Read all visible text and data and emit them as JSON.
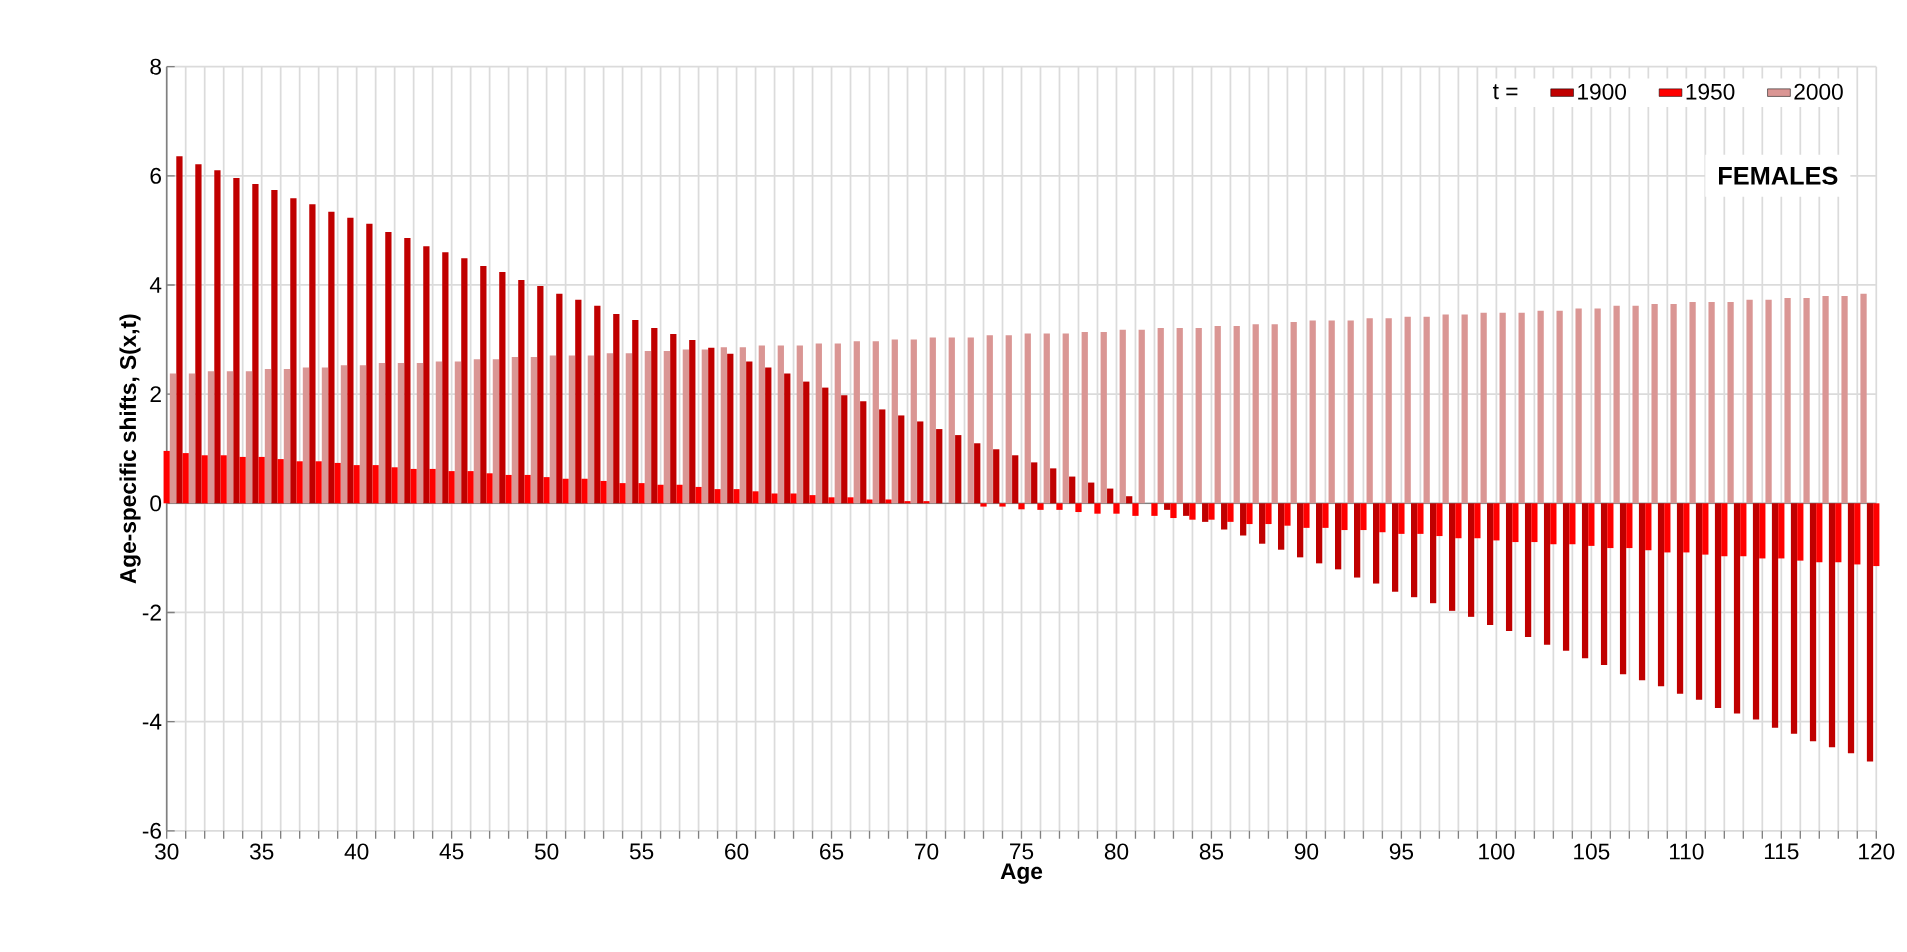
{
  "chart_data": {
    "type": "bar",
    "xlabel": "Age",
    "ylabel": "Age-specific shifts, S(x,t)",
    "legend_title": "t =",
    "annotations": [
      "FEMALES"
    ],
    "x": [
      30,
      31,
      32,
      33,
      34,
      35,
      36,
      37,
      38,
      39,
      40,
      41,
      42,
      43,
      44,
      45,
      46,
      47,
      48,
      49,
      50,
      51,
      52,
      53,
      54,
      55,
      56,
      57,
      58,
      59,
      60,
      61,
      62,
      63,
      64,
      65,
      66,
      67,
      68,
      69,
      70,
      71,
      72,
      73,
      74,
      75,
      76,
      77,
      78,
      79,
      80,
      81,
      82,
      83,
      84,
      85,
      86,
      87,
      88,
      89,
      90,
      91,
      92,
      93,
      94,
      95,
      96,
      97,
      98,
      99,
      100,
      101,
      102,
      103,
      104,
      105,
      106,
      107,
      108,
      109,
      110,
      111,
      112,
      113,
      114,
      115,
      116,
      117,
      118,
      119,
      120
    ],
    "series": [
      {
        "name": "1900",
        "color": "#c00000",
        "values": [
          null,
          6.36,
          6.21,
          6.1,
          5.96,
          5.85,
          5.74,
          5.59,
          5.48,
          5.34,
          5.23,
          5.12,
          4.97,
          4.86,
          4.71,
          4.6,
          4.49,
          4.35,
          4.24,
          4.09,
          3.98,
          3.84,
          3.73,
          3.62,
          3.47,
          3.36,
          3.21,
          3.1,
          2.99,
          2.85,
          2.74,
          2.6,
          2.49,
          2.38,
          2.23,
          2.12,
          1.98,
          1.87,
          1.72,
          1.61,
          1.5,
          1.36,
          1.25,
          1.1,
          0.99,
          0.88,
          0.75,
          0.64,
          0.49,
          0.38,
          0.27,
          0.13,
          0.0,
          -0.12,
          -0.23,
          -0.34,
          -0.48,
          -0.59,
          -0.74,
          -0.85,
          -0.99,
          -1.1,
          -1.21,
          -1.36,
          -1.47,
          -1.62,
          -1.72,
          -1.83,
          -1.97,
          -2.08,
          -2.23,
          -2.34,
          -2.45,
          -2.59,
          -2.7,
          -2.84,
          -2.96,
          -3.13,
          -3.24,
          -3.35,
          -3.49,
          -3.6,
          -3.75,
          -3.85,
          -3.96,
          -4.11,
          -4.22,
          -4.36,
          -4.47,
          -4.58,
          -4.73
        ]
      },
      {
        "name": "1950",
        "color": "#ff0000",
        "values": [
          0.96,
          0.92,
          0.88,
          0.88,
          0.85,
          0.85,
          0.81,
          0.77,
          0.77,
          0.74,
          0.7,
          0.7,
          0.66,
          0.63,
          0.63,
          0.59,
          0.59,
          0.55,
          0.52,
          0.52,
          0.48,
          0.45,
          0.45,
          0.41,
          0.37,
          0.37,
          0.34,
          0.34,
          0.3,
          0.26,
          0.26,
          0.22,
          0.18,
          0.18,
          0.15,
          0.11,
          0.11,
          0.07,
          0.07,
          0.04,
          0.04,
          0.0,
          0.0,
          -0.06,
          -0.06,
          -0.11,
          -0.12,
          -0.12,
          -0.16,
          -0.19,
          -0.19,
          -0.23,
          -0.23,
          -0.27,
          -0.3,
          -0.3,
          -0.34,
          -0.38,
          -0.38,
          -0.41,
          -0.45,
          -0.45,
          -0.49,
          -0.49,
          -0.53,
          -0.56,
          -0.56,
          -0.6,
          -0.64,
          -0.64,
          -0.68,
          -0.71,
          -0.71,
          -0.75,
          -0.75,
          -0.78,
          -0.82,
          -0.82,
          -0.86,
          -0.9,
          -0.9,
          -0.94,
          -0.97,
          -0.97,
          -1.01,
          -1.01,
          -1.05,
          -1.08,
          -1.08,
          -1.12,
          -1.15
        ]
      },
      {
        "name": "2000",
        "color": "#da9694",
        "values": [
          2.38,
          2.38,
          2.42,
          2.42,
          2.42,
          2.46,
          2.46,
          2.49,
          2.49,
          2.53,
          2.53,
          2.57,
          2.57,
          2.57,
          2.6,
          2.6,
          2.64,
          2.64,
          2.68,
          2.68,
          2.71,
          2.71,
          2.71,
          2.75,
          2.75,
          2.79,
          2.79,
          2.82,
          2.82,
          2.86,
          2.86,
          2.89,
          2.89,
          2.89,
          2.93,
          2.93,
          2.97,
          2.97,
          3.0,
          3.0,
          3.04,
          3.04,
          3.04,
          3.08,
          3.08,
          3.11,
          3.11,
          3.11,
          3.14,
          3.14,
          3.18,
          3.18,
          3.21,
          3.21,
          3.21,
          3.25,
          3.25,
          3.28,
          3.28,
          3.32,
          3.35,
          3.35,
          3.35,
          3.39,
          3.39,
          3.42,
          3.42,
          3.46,
          3.46,
          3.49,
          3.49,
          3.49,
          3.53,
          3.53,
          3.57,
          3.57,
          3.62,
          3.62,
          3.65,
          3.65,
          3.69,
          3.69,
          3.69,
          3.73,
          3.73,
          3.76,
          3.76,
          3.8,
          3.8,
          3.84,
          null
        ]
      }
    ],
    "xlim": [
      30,
      120
    ],
    "ylim": [
      -6,
      8
    ],
    "yticks": [
      -6,
      -4,
      -2,
      0,
      2,
      4,
      6,
      8
    ],
    "xticks": [
      30,
      {
        "value": 31,
        "label": null
      },
      {
        "value": 32,
        "label": null
      },
      {
        "value": 33,
        "label": null
      },
      {
        "value": 34,
        "label": null
      },
      35,
      {
        "value": 36,
        "label": null
      },
      {
        "value": 37,
        "label": null
      },
      {
        "value": 38,
        "label": null
      },
      {
        "value": 39,
        "label": null
      },
      40,
      {
        "value": 41,
        "label": null
      },
      {
        "value": 42,
        "label": null
      },
      {
        "value": 43,
        "label": null
      },
      {
        "value": 44,
        "label": null
      },
      45,
      {
        "value": 46,
        "label": null
      },
      {
        "value": 47,
        "label": null
      },
      {
        "value": 48,
        "label": null
      },
      {
        "value": 49,
        "label": null
      },
      50,
      {
        "value": 51,
        "label": null
      },
      {
        "value": 52,
        "label": null
      },
      {
        "value": 53,
        "label": null
      },
      {
        "value": 54,
        "label": null
      },
      55,
      {
        "value": 56,
        "label": null
      },
      {
        "value": 57,
        "label": null
      },
      {
        "value": 58,
        "label": null
      },
      {
        "value": 59,
        "label": null
      },
      60,
      {
        "value": 61,
        "label": null
      },
      {
        "value": 62,
        "label": null
      },
      {
        "value": 63,
        "label": null
      },
      {
        "value": 64,
        "label": null
      },
      65,
      {
        "value": 66,
        "label": null
      },
      {
        "value": 67,
        "label": null
      },
      {
        "value": 68,
        "label": null
      },
      {
        "value": 69,
        "label": null
      },
      70,
      {
        "value": 71,
        "label": null
      },
      {
        "value": 72,
        "label": null
      },
      {
        "value": 73,
        "label": null
      },
      {
        "value": 74,
        "label": null
      },
      75,
      {
        "value": 76,
        "label": null
      },
      {
        "value": 77,
        "label": null
      },
      {
        "value": 78,
        "label": null
      },
      {
        "value": 79,
        "label": null
      },
      80,
      {
        "value": 81,
        "label": null
      },
      {
        "value": 82,
        "label": null
      },
      {
        "value": 83,
        "label": null
      },
      {
        "value": 84,
        "label": null
      },
      85,
      {
        "value": 86,
        "label": null
      },
      {
        "value": 87,
        "label": null
      },
      {
        "value": 88,
        "label": null
      },
      {
        "value": 89,
        "label": null
      },
      90,
      {
        "value": 91,
        "label": null
      },
      {
        "value": 92,
        "label": null
      },
      {
        "value": 93,
        "label": null
      },
      {
        "value": 94,
        "label": null
      },
      95,
      {
        "value": 96,
        "label": null
      },
      {
        "value": 97,
        "label": null
      },
      {
        "value": 98,
        "label": null
      },
      {
        "value": 99,
        "label": null
      },
      100,
      {
        "value": 101,
        "label": null
      },
      {
        "value": 102,
        "label": null
      },
      {
        "value": 103,
        "label": null
      },
      {
        "value": 104,
        "label": null
      },
      105,
      {
        "value": 106,
        "label": null
      },
      {
        "value": 107,
        "label": null
      },
      {
        "value": 108,
        "label": null
      },
      {
        "value": 109,
        "label": null
      },
      110,
      {
        "value": 111,
        "label": null
      },
      {
        "value": 112,
        "label": null
      },
      {
        "value": 113,
        "label": null
      },
      {
        "value": 114,
        "label": null
      },
      115,
      {
        "value": 116,
        "label": null
      },
      {
        "value": 117,
        "label": null
      },
      {
        "value": 118,
        "label": null
      },
      {
        "value": 119,
        "label": null
      },
      120
    ],
    "grid": true,
    "legend": "top right"
  }
}
